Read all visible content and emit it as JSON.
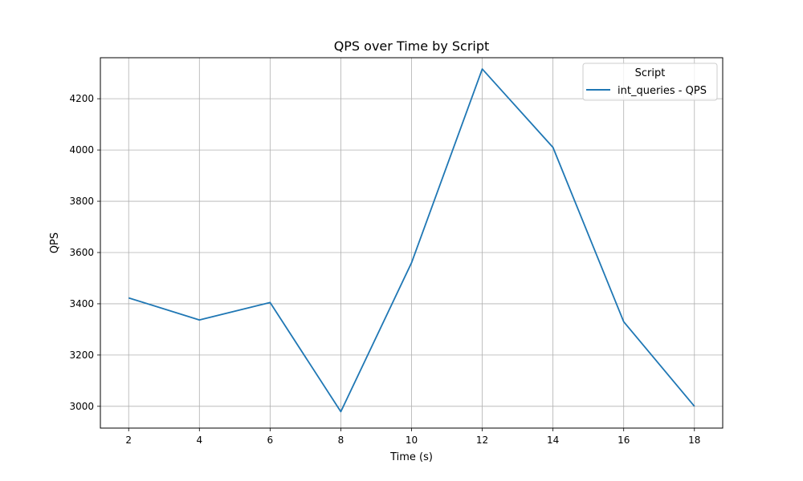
{
  "chart_data": {
    "type": "line",
    "title": "QPS over Time by Script",
    "xlabel": "Time (s)",
    "ylabel": "QPS",
    "xlim": [
      1.2,
      18.8
    ],
    "ylim": [
      2915,
      4360
    ],
    "x_ticks": [
      2,
      4,
      6,
      8,
      10,
      12,
      14,
      16,
      18
    ],
    "y_ticks": [
      3000,
      3200,
      3400,
      3600,
      3800,
      4000,
      4200
    ],
    "grid": true,
    "legend": {
      "title": "Script",
      "placement": "upper-right"
    },
    "series": [
      {
        "name": "int_queries - QPS",
        "color": "#1f77b4",
        "x": [
          2,
          4,
          6,
          8,
          10,
          12,
          14,
          16,
          18
        ],
        "y": [
          3423,
          3337,
          3405,
          2979,
          3560,
          4316,
          4010,
          3330,
          3000
        ]
      }
    ]
  }
}
